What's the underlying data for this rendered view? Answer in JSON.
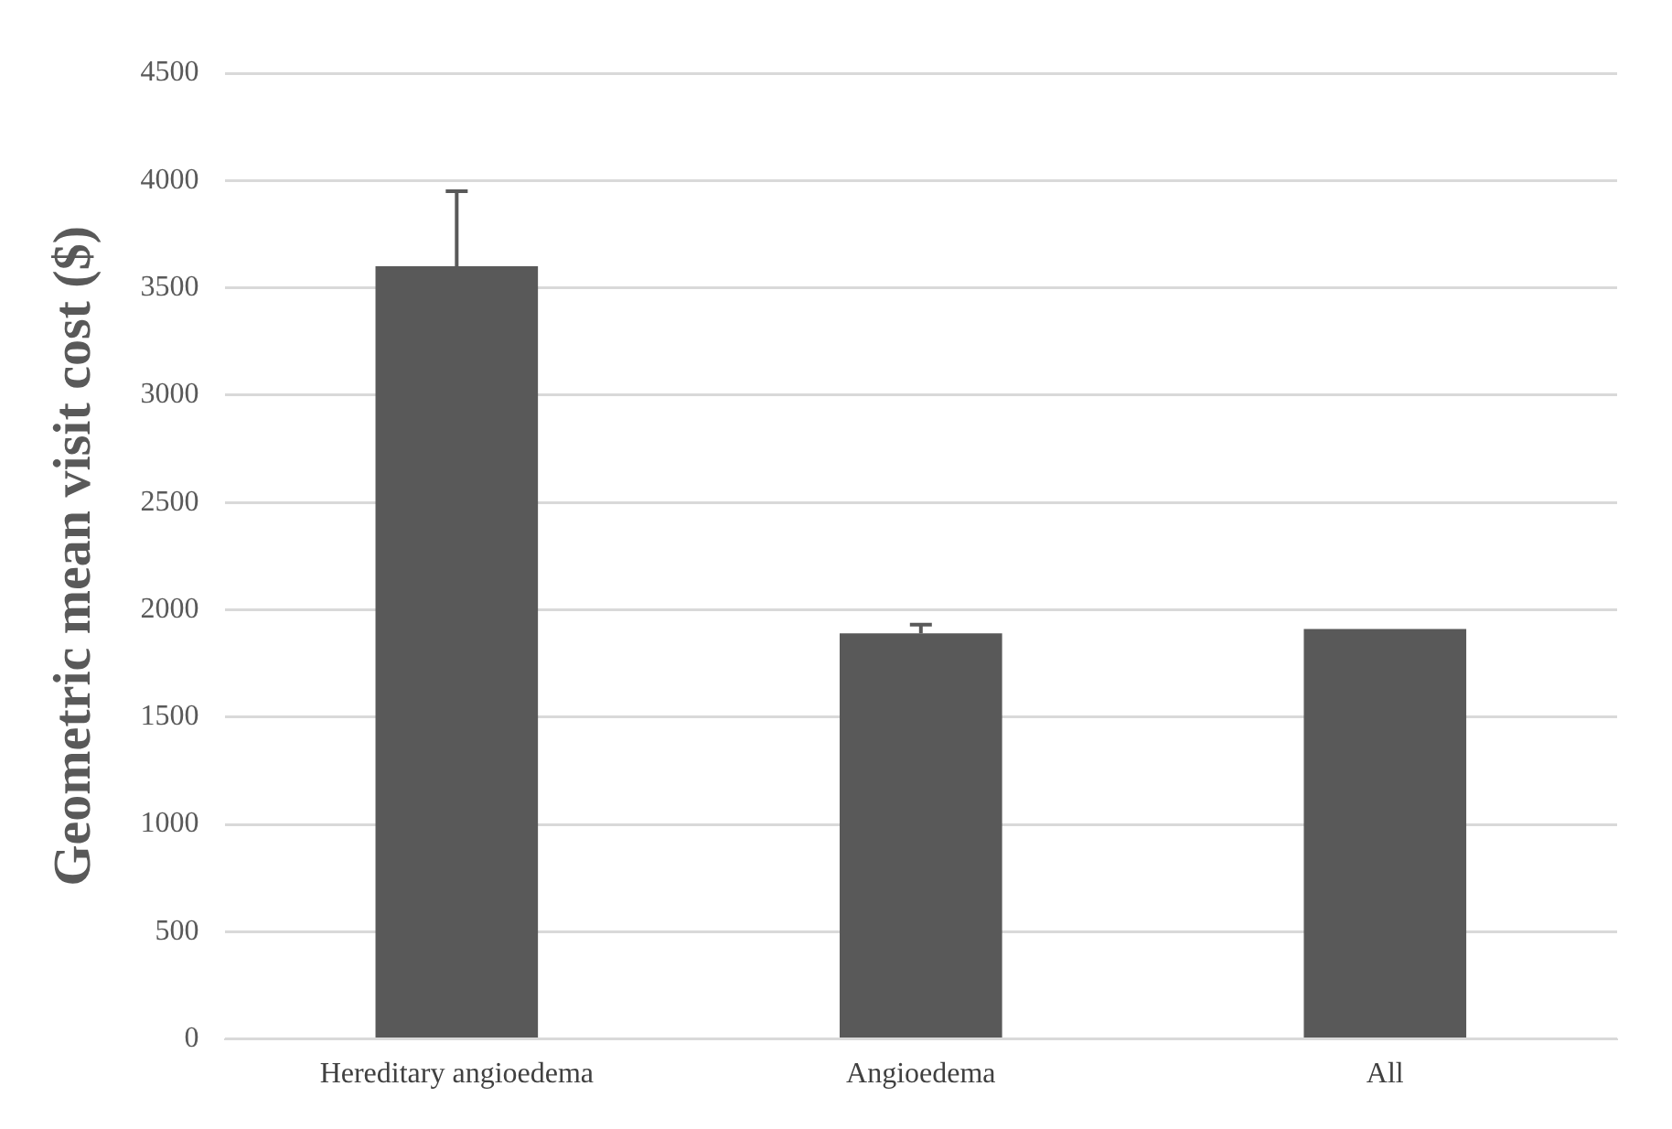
{
  "chart_data": {
    "type": "bar",
    "ylabel": "Geometric mean visit cost ($)",
    "categories": [
      "Hereditary angioedema",
      "Angioedema",
      "All"
    ],
    "values": [
      3600,
      1890,
      1910
    ],
    "errors": [
      [
        3600,
        3950
      ],
      [
        1890,
        1930
      ],
      null
    ],
    "color": "#595959",
    "ylim": [
      0,
      4500
    ],
    "yticks": [
      0,
      500,
      1000,
      1500,
      2000,
      2500,
      3000,
      3500,
      4000,
      4500
    ],
    "grid": "y",
    "legend": false
  }
}
